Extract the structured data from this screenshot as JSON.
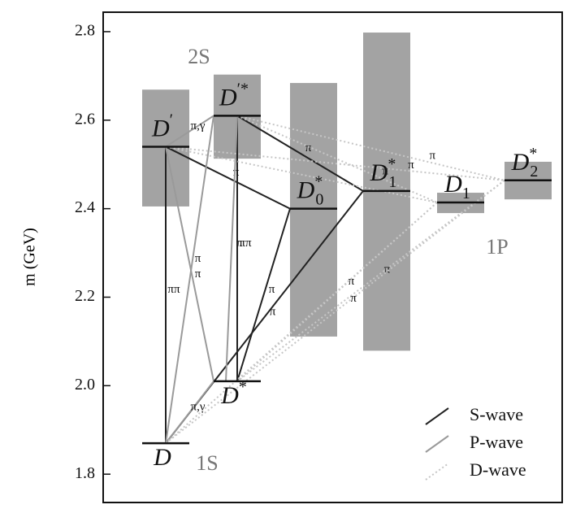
{
  "chart_data": {
    "type": "level-diagram",
    "ylabel": "m (GeV)",
    "ylim": [
      1.736,
      2.844
    ],
    "yticks": [
      1.8,
      {
        "value": 2,
        "label": "2.0"
      },
      2.2,
      2.4,
      2.6,
      2.8
    ],
    "band_color": "#a3a3a3",
    "levels": [
      {
        "name": "D",
        "sup": "",
        "sub": "",
        "mass": 1.87
      },
      {
        "name": "D",
        "sup": "*",
        "sub": "",
        "mass": 2.01
      },
      {
        "name": "D",
        "sup": "′",
        "sub": "",
        "mass": 2.54,
        "band": [
          2.405,
          2.669
        ]
      },
      {
        "name": "D",
        "sup": "′*",
        "sub": "",
        "mass": 2.61,
        "band": [
          2.513,
          2.703
        ]
      },
      {
        "name": "D",
        "sup": "*",
        "sub": "0",
        "mass": 2.4,
        "band": [
          2.111,
          2.684
        ]
      },
      {
        "name": "D",
        "sup": "*",
        "sub": "1",
        "mass": 2.44,
        "band": [
          2.079,
          2.798
        ]
      },
      {
        "name": "D",
        "sup": "",
        "sub": "1",
        "mass": 2.414,
        "band": [
          2.39,
          2.436
        ]
      },
      {
        "name": "D",
        "sup": "*",
        "sub": "2",
        "mass": 2.464,
        "band": [
          2.421,
          2.506
        ]
      }
    ],
    "groups": [
      "2S",
      "1S",
      "1P"
    ],
    "waves": [
      {
        "name": "S-wave",
        "color": "#222222",
        "dash": false
      },
      {
        "name": "P-wave",
        "color": "#9a9a9a",
        "dash": false
      },
      {
        "name": "D-wave",
        "color": "#c6c6c6",
        "dash": true
      }
    ],
    "transitions": [
      {
        "from": 2,
        "to": 0,
        "wave": 0,
        "label": "ππ"
      },
      {
        "from": 3,
        "to": 1,
        "wave": 0,
        "label": "ππ"
      },
      {
        "from": 2,
        "to": 4,
        "wave": 0,
        "label": "π"
      },
      {
        "from": 3,
        "to": 5,
        "wave": 0,
        "label": "π"
      },
      {
        "from": 4,
        "to": 1,
        "wave": 0,
        "label": "π"
      },
      {
        "from": 5,
        "to": 0,
        "wave": 0,
        "label": "π"
      },
      {
        "from": 3,
        "to": 2,
        "wave": 1,
        "label": "π,γ"
      },
      {
        "from": 2,
        "to": 1,
        "wave": 1,
        "label": "π"
      },
      {
        "from": 3,
        "to": 0,
        "wave": 1,
        "label": "π"
      },
      {
        "from": 3,
        "to": 1,
        "wave": 1,
        "label": "π"
      },
      {
        "from": 1,
        "to": 0,
        "wave": 1,
        "label": "π,γ"
      },
      {
        "from": 3,
        "to": 7,
        "wave": 2,
        "label": "π"
      },
      {
        "from": 3,
        "to": 6,
        "wave": 2,
        "label": "π"
      },
      {
        "from": 2,
        "to": 7,
        "wave": 2,
        "label": "π"
      },
      {
        "from": 6,
        "to": 1,
        "wave": 2,
        "label": "π"
      },
      {
        "from": 7,
        "to": 1,
        "wave": 2,
        "label": "π"
      },
      {
        "from": 7,
        "to": 0,
        "wave": 2,
        "label": "π"
      },
      {
        "from": 6,
        "to": 0,
        "wave": 2
      },
      {
        "from": 2,
        "to": 6,
        "wave": 2
      }
    ]
  }
}
